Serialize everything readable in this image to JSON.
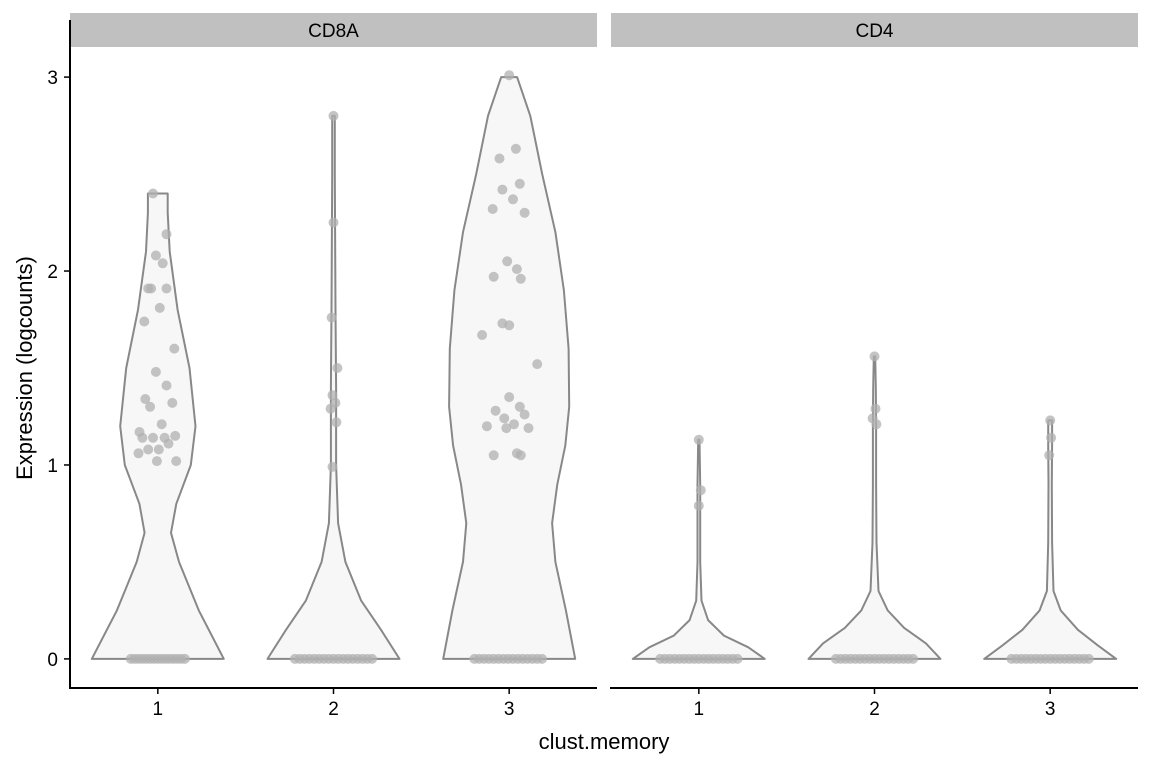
{
  "colors": {
    "background": "#ffffff",
    "strip_fill": "#c0c0c0",
    "violin_fill": "#f7f7f7",
    "violin_stroke": "#888888",
    "point_color": "#b0b0b0",
    "axis_line": "#000000",
    "text": "#000000"
  },
  "chart_data": {
    "type": "violin",
    "xlabel": "clust.memory",
    "ylabel": "Expression (logcounts)",
    "ylim": [
      -0.15,
      3.15
    ],
    "y_ticks": [
      0,
      1,
      2,
      3
    ],
    "categories": [
      "1",
      "2",
      "3"
    ],
    "grid": false,
    "facets": [
      {
        "label": "CD8A",
        "groups": [
          {
            "category": "1",
            "max": 2.4,
            "profile": [
              [
                0,
                1.0
              ],
              [
                0.25,
                0.62
              ],
              [
                0.5,
                0.32
              ],
              [
                0.65,
                0.2
              ],
              [
                0.8,
                0.28
              ],
              [
                1.0,
                0.5
              ],
              [
                1.2,
                0.57
              ],
              [
                1.5,
                0.48
              ],
              [
                1.8,
                0.3
              ],
              [
                2.1,
                0.18
              ],
              [
                2.3,
                0.15
              ],
              [
                2.4,
                0.15
              ]
            ],
            "points": [
              [
                -0.28,
                0
              ],
              [
                -0.24,
                0
              ],
              [
                -0.2,
                0
              ],
              [
                -0.16,
                0
              ],
              [
                -0.12,
                0
              ],
              [
                -0.08,
                0
              ],
              [
                -0.04,
                0
              ],
              [
                0.0,
                0
              ],
              [
                0.04,
                0
              ],
              [
                0.08,
                0
              ],
              [
                0.12,
                0
              ],
              [
                0.16,
                0
              ],
              [
                0.2,
                0
              ],
              [
                0.24,
                0
              ],
              [
                0.28,
                0
              ],
              [
                -0.05,
                2.4
              ],
              [
                0.09,
                2.19
              ],
              [
                -0.02,
                2.08
              ],
              [
                0.05,
                2.04
              ],
              [
                -0.1,
                1.91
              ],
              [
                -0.07,
                1.91
              ],
              [
                0.09,
                1.91
              ],
              [
                0.02,
                1.81
              ],
              [
                -0.14,
                1.74
              ],
              [
                0.17,
                1.6
              ],
              [
                -0.02,
                1.48
              ],
              [
                0.09,
                1.41
              ],
              [
                -0.13,
                1.34
              ],
              [
                0.15,
                1.32
              ],
              [
                -0.08,
                1.3
              ],
              [
                0.04,
                1.21
              ],
              [
                -0.19,
                1.17
              ],
              [
                -0.16,
                1.14
              ],
              [
                -0.05,
                1.14
              ],
              [
                0.07,
                1.14
              ],
              [
                0.18,
                1.15
              ],
              [
                0.11,
                1.11
              ],
              [
                -0.1,
                1.08
              ],
              [
                0.01,
                1.08
              ],
              [
                -0.2,
                1.06
              ],
              [
                -0.01,
                1.02
              ],
              [
                0.19,
                1.02
              ]
            ]
          },
          {
            "category": "2",
            "max": 2.8,
            "profile": [
              [
                0,
                1.0
              ],
              [
                0.15,
                0.72
              ],
              [
                0.3,
                0.42
              ],
              [
                0.5,
                0.18
              ],
              [
                0.7,
                0.07
              ],
              [
                1.0,
                0.04
              ],
              [
                1.4,
                0.04
              ],
              [
                1.8,
                0.03
              ],
              [
                2.2,
                0.025
              ],
              [
                2.5,
                0.02
              ],
              [
                2.8,
                0.02
              ]
            ],
            "points": [
              [
                -0.4,
                0
              ],
              [
                -0.35,
                0
              ],
              [
                -0.3,
                0
              ],
              [
                -0.25,
                0
              ],
              [
                -0.2,
                0
              ],
              [
                -0.15,
                0
              ],
              [
                -0.1,
                0
              ],
              [
                -0.05,
                0
              ],
              [
                0.0,
                0
              ],
              [
                0.05,
                0
              ],
              [
                0.1,
                0
              ],
              [
                0.15,
                0
              ],
              [
                0.2,
                0
              ],
              [
                0.25,
                0
              ],
              [
                0.3,
                0
              ],
              [
                0.35,
                0
              ],
              [
                0.4,
                0
              ],
              [
                0.0,
                2.8
              ],
              [
                0.0,
                2.25
              ],
              [
                -0.02,
                1.76
              ],
              [
                0.04,
                1.5
              ],
              [
                -0.01,
                1.36
              ],
              [
                -0.03,
                1.29
              ],
              [
                0.02,
                1.32
              ],
              [
                0.03,
                1.22
              ],
              [
                -0.01,
                0.99
              ]
            ]
          },
          {
            "category": "3",
            "max": 3.0,
            "profile": [
              [
                0,
                1.0
              ],
              [
                0.25,
                0.86
              ],
              [
                0.5,
                0.7
              ],
              [
                0.7,
                0.65
              ],
              [
                0.9,
                0.73
              ],
              [
                1.1,
                0.85
              ],
              [
                1.3,
                0.91
              ],
              [
                1.6,
                0.9
              ],
              [
                1.9,
                0.83
              ],
              [
                2.2,
                0.7
              ],
              [
                2.5,
                0.5
              ],
              [
                2.8,
                0.32
              ],
              [
                3.0,
                0.12
              ]
            ],
            "points": [
              [
                -0.36,
                0
              ],
              [
                -0.31,
                0
              ],
              [
                -0.26,
                0
              ],
              [
                -0.21,
                0
              ],
              [
                -0.16,
                0
              ],
              [
                -0.11,
                0
              ],
              [
                -0.06,
                0
              ],
              [
                -0.01,
                0
              ],
              [
                0.04,
                0
              ],
              [
                0.09,
                0
              ],
              [
                0.14,
                0
              ],
              [
                0.19,
                0
              ],
              [
                0.24,
                0
              ],
              [
                0.29,
                0
              ],
              [
                0.34,
                0
              ],
              [
                0.0,
                3.01
              ],
              [
                0.07,
                2.63
              ],
              [
                -0.1,
                2.58
              ],
              [
                -0.07,
                2.42
              ],
              [
                0.11,
                2.45
              ],
              [
                0.04,
                2.37
              ],
              [
                -0.17,
                2.32
              ],
              [
                0.16,
                2.3
              ],
              [
                -0.02,
                2.05
              ],
              [
                0.08,
                2.01
              ],
              [
                -0.16,
                1.97
              ],
              [
                0.12,
                1.96
              ],
              [
                -0.28,
                1.67
              ],
              [
                -0.07,
                1.73
              ],
              [
                0.0,
                1.72
              ],
              [
                0.29,
                1.52
              ],
              [
                0.0,
                1.35
              ],
              [
                -0.14,
                1.28
              ],
              [
                0.11,
                1.3
              ],
              [
                -0.05,
                1.24
              ],
              [
                0.16,
                1.26
              ],
              [
                -0.23,
                1.2
              ],
              [
                -0.03,
                1.19
              ],
              [
                0.05,
                1.21
              ],
              [
                0.2,
                1.19
              ],
              [
                -0.16,
                1.05
              ],
              [
                0.08,
                1.06
              ],
              [
                0.12,
                1.05
              ]
            ]
          }
        ]
      },
      {
        "label": "CD4",
        "groups": [
          {
            "category": "1",
            "max": 1.13,
            "profile": [
              [
                0,
                1.0
              ],
              [
                0.06,
                0.75
              ],
              [
                0.12,
                0.38
              ],
              [
                0.2,
                0.14
              ],
              [
                0.3,
                0.04
              ],
              [
                0.5,
                0.02
              ],
              [
                0.7,
                0.02
              ],
              [
                0.9,
                0.02
              ],
              [
                1.13,
                0.01
              ]
            ],
            "points": [
              [
                -0.4,
                0
              ],
              [
                -0.35,
                0
              ],
              [
                -0.3,
                0
              ],
              [
                -0.25,
                0
              ],
              [
                -0.2,
                0
              ],
              [
                -0.15,
                0
              ],
              [
                -0.1,
                0
              ],
              [
                -0.05,
                0
              ],
              [
                0.0,
                0
              ],
              [
                0.05,
                0
              ],
              [
                0.1,
                0
              ],
              [
                0.15,
                0
              ],
              [
                0.2,
                0
              ],
              [
                0.25,
                0
              ],
              [
                0.3,
                0
              ],
              [
                0.35,
                0
              ],
              [
                0.4,
                0
              ],
              [
                0.0,
                1.13
              ],
              [
                0.02,
                0.87
              ],
              [
                0.0,
                0.79
              ]
            ]
          },
          {
            "category": "2",
            "max": 1.56,
            "profile": [
              [
                0,
                1.0
              ],
              [
                0.08,
                0.78
              ],
              [
                0.16,
                0.45
              ],
              [
                0.25,
                0.2
              ],
              [
                0.35,
                0.06
              ],
              [
                0.6,
                0.03
              ],
              [
                0.9,
                0.025
              ],
              [
                1.2,
                0.025
              ],
              [
                1.4,
                0.02
              ],
              [
                1.56,
                0.01
              ]
            ],
            "points": [
              [
                -0.4,
                0
              ],
              [
                -0.35,
                0
              ],
              [
                -0.3,
                0
              ],
              [
                -0.25,
                0
              ],
              [
                -0.2,
                0
              ],
              [
                -0.15,
                0
              ],
              [
                -0.1,
                0
              ],
              [
                -0.05,
                0
              ],
              [
                0.0,
                0
              ],
              [
                0.05,
                0
              ],
              [
                0.1,
                0
              ],
              [
                0.15,
                0
              ],
              [
                0.2,
                0
              ],
              [
                0.25,
                0
              ],
              [
                0.3,
                0
              ],
              [
                0.35,
                0
              ],
              [
                0.4,
                0
              ],
              [
                0.0,
                1.56
              ],
              [
                0.01,
                1.29
              ],
              [
                -0.02,
                1.24
              ],
              [
                0.02,
                1.21
              ]
            ]
          },
          {
            "category": "3",
            "max": 1.23,
            "profile": [
              [
                0,
                1.0
              ],
              [
                0.07,
                0.72
              ],
              [
                0.15,
                0.42
              ],
              [
                0.25,
                0.16
              ],
              [
                0.35,
                0.05
              ],
              [
                0.6,
                0.03
              ],
              [
                0.9,
                0.025
              ],
              [
                1.1,
                0.03
              ],
              [
                1.23,
                0.03
              ]
            ],
            "points": [
              [
                -0.4,
                0
              ],
              [
                -0.35,
                0
              ],
              [
                -0.3,
                0
              ],
              [
                -0.25,
                0
              ],
              [
                -0.2,
                0
              ],
              [
                -0.15,
                0
              ],
              [
                -0.1,
                0
              ],
              [
                -0.05,
                0
              ],
              [
                0.0,
                0
              ],
              [
                0.05,
                0
              ],
              [
                0.1,
                0
              ],
              [
                0.15,
                0
              ],
              [
                0.2,
                0
              ],
              [
                0.25,
                0
              ],
              [
                0.3,
                0
              ],
              [
                0.35,
                0
              ],
              [
                0.4,
                0
              ],
              [
                0.0,
                1.23
              ],
              [
                0.01,
                1.14
              ],
              [
                -0.01,
                1.05
              ]
            ]
          }
        ]
      }
    ]
  }
}
